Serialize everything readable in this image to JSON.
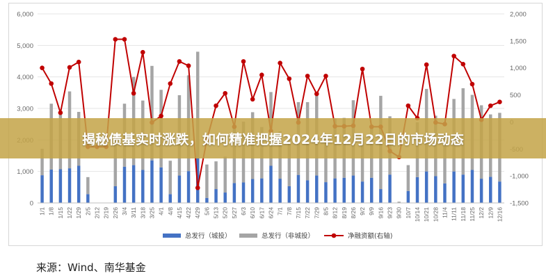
{
  "banner": {
    "title": "揭秘债基实时涨跌，如何精准把握2024年12月22日的市场动态"
  },
  "source": {
    "text": "来源：Wind、南华基金"
  },
  "chart_data": {
    "type": "bar",
    "categories": [
      "1/1",
      "1/8",
      "1/15",
      "1/22",
      "1/29",
      "2/5",
      "2/12",
      "2/19",
      "2/26",
      "3/4",
      "3/11",
      "3/18",
      "3/25",
      "4/1",
      "4/8",
      "4/15",
      "4/22",
      "4/29",
      "5/6",
      "5/13",
      "5/20",
      "5/27",
      "6/3",
      "6/10",
      "6/17",
      "6/24",
      "7/1",
      "7/8",
      "7/15",
      "7/22",
      "7/29",
      "8/5",
      "8/12",
      "8/19",
      "8/26",
      "9/2",
      "9/9",
      "9/16",
      "9/23",
      "9/30",
      "10/7",
      "10/14",
      "10/21",
      "10/28",
      "11/4",
      "11/11",
      "11/18",
      "11/25",
      "12/2",
      "12/9",
      "12/16"
    ],
    "series": [
      {
        "name": "总发行（城投）",
        "chart": "bar",
        "axis": "left",
        "color": "#4472C4",
        "values": [
          880,
          1060,
          1070,
          1100,
          1180,
          280,
          0,
          0,
          530,
          1150,
          1200,
          1050,
          1350,
          1130,
          280,
          870,
          1010,
          1420,
          160,
          440,
          330,
          630,
          650,
          760,
          780,
          1180,
          770,
          530,
          890,
          720,
          870,
          660,
          780,
          800,
          870,
          680,
          800,
          440,
          900,
          0,
          380,
          820,
          1000,
          850,
          620,
          1000,
          900,
          1050,
          770,
          830,
          680
        ]
      },
      {
        "name": "总发行（非城投）",
        "chart": "bar",
        "axis": "left",
        "color": "#A5A5A5",
        "values": [
          840,
          2090,
          1840,
          2440,
          1710,
          540,
          0,
          0,
          1320,
          2000,
          2800,
          2200,
          3000,
          2460,
          1060,
          2550,
          3040,
          3380,
          1060,
          880,
          1140,
          1850,
          1930,
          2120,
          1630,
          2340,
          1500,
          1520,
          2310,
          2480,
          2530,
          1460,
          1900,
          1900,
          2390,
          1400,
          1660,
          2960,
          1850,
          40,
          820,
          1740,
          2620,
          1920,
          1560,
          2300,
          2740,
          2380,
          2330,
          1980,
          2180
        ]
      },
      {
        "name": "净融资额(右轴)",
        "chart": "line",
        "axis": "right",
        "color": "#C00000",
        "values": [
          1000,
          710,
          170,
          1010,
          1110,
          -460,
          -460,
          -460,
          1530,
          1530,
          530,
          1290,
          -10,
          110,
          710,
          1120,
          1040,
          -1220,
          -330,
          300,
          530,
          -90,
          1120,
          420,
          870,
          -170,
          1090,
          800,
          -10,
          850,
          520,
          850,
          -80,
          -80,
          -70,
          980,
          -90,
          -90,
          -540,
          -650,
          300,
          70,
          1060,
          -10,
          -40,
          1220,
          1070,
          700,
          40,
          300,
          370
        ]
      }
    ],
    "y_left": {
      "min": 0,
      "max": 6000,
      "ticks": [
        "0",
        "1,000",
        "2,000",
        "3,000",
        "4,000",
        "5,000",
        "6,000"
      ]
    },
    "y_right": {
      "min": -1500,
      "max": 2000,
      "ticks": [
        "-1,500",
        "-1,000",
        "-500",
        "0",
        "500",
        "1,000",
        "1,500",
        "2,000"
      ]
    },
    "grid": true,
    "legend": "bottom"
  }
}
